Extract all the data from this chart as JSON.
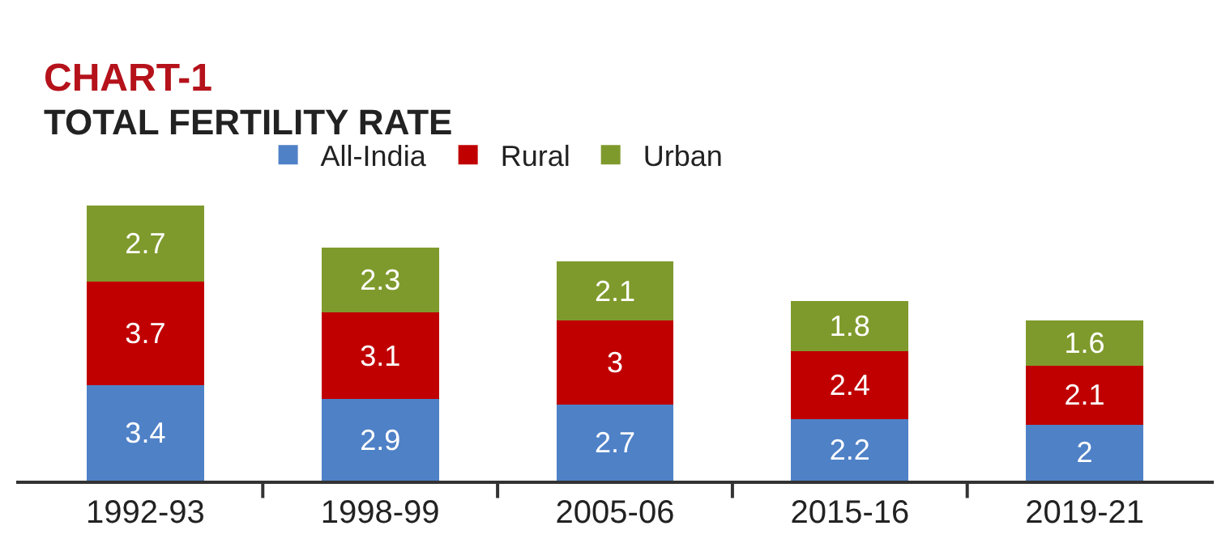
{
  "chart_data": {
    "type": "bar",
    "title": "CHART-1",
    "subtitle": "TOTAL FERTILITY RATE",
    "stacked": true,
    "data_labels": true,
    "legend": "top",
    "tick_labels": "x",
    "categories": [
      "1992-93",
      "1998-99",
      "2005-06",
      "2015-16",
      "2019-21"
    ],
    "series": [
      {
        "name": "All-India",
        "color": "#4f81c7",
        "values": [
          3.4,
          2.9,
          2.7,
          2.2,
          2
        ]
      },
      {
        "name": "Rural",
        "color": "#c00000",
        "values": [
          3.7,
          3.1,
          3,
          2.4,
          2.1
        ]
      },
      {
        "name": "Urban",
        "color": "#7f9a2c",
        "values": [
          2.7,
          2.3,
          2.1,
          1.8,
          1.6
        ]
      }
    ]
  }
}
